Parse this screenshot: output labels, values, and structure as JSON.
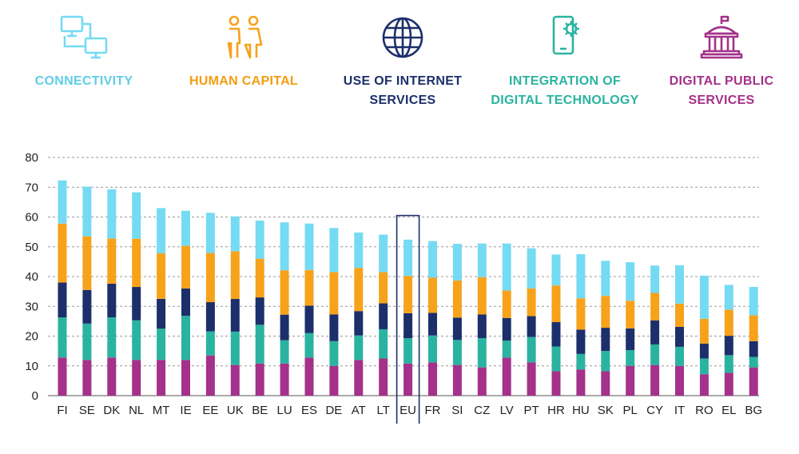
{
  "legend": {
    "items": [
      {
        "key": "connectivity",
        "label": "CONNECTIVITY",
        "color": "#75dbf3",
        "icon": "connected-computers-icon"
      },
      {
        "key": "human_capital",
        "label": "HUMAN CAPITAL",
        "color": "#f7a21b",
        "icon": "two-people-icon"
      },
      {
        "key": "internet_services",
        "label": "USE OF INTERNET\nSERVICES",
        "color": "#1c2f6b",
        "icon": "globe-icon"
      },
      {
        "key": "digital_technology",
        "label": "INTEGRATION OF\nDIGITAL TECHNOLOGY",
        "color": "#2ab3a0",
        "icon": "smartphone-gear-icon"
      },
      {
        "key": "public_services",
        "label": "DIGITAL PUBLIC\nSERVICES",
        "color": "#a4318a",
        "icon": "government-building-icon"
      }
    ]
  },
  "chart_data": {
    "type": "bar",
    "stacked": true,
    "ylim": [
      0,
      80
    ],
    "yticks": [
      0,
      10,
      20,
      30,
      40,
      50,
      60,
      70,
      80
    ],
    "grid": true,
    "highlight": "EU",
    "categories": [
      "FI",
      "SE",
      "DK",
      "NL",
      "MT",
      "IE",
      "EE",
      "UK",
      "BE",
      "LU",
      "ES",
      "DE",
      "AT",
      "LT",
      "EU",
      "FR",
      "SI",
      "CZ",
      "LV",
      "PT",
      "HR",
      "HU",
      "SK",
      "PL",
      "CY",
      "IT",
      "RO",
      "EL",
      "BG"
    ],
    "series": [
      {
        "key": "public_services",
        "color": "#a4318a",
        "values": [
          12.8,
          12,
          12.8,
          12,
          12,
          12,
          13.5,
          10.3,
          10.8,
          10.8,
          12.8,
          10,
          12,
          12.5,
          10.8,
          11.2,
          10.3,
          9.5,
          12.8,
          11.2,
          8.2,
          8.8,
          8.2,
          10,
          10.3,
          10,
          7.2,
          7.7,
          9.5
        ]
      },
      {
        "key": "digital_technology",
        "color": "#2ab3a0",
        "values": [
          13.5,
          12.2,
          13.5,
          13.3,
          10.5,
          14.8,
          8.1,
          11.2,
          13,
          7.8,
          8.2,
          8.3,
          8.2,
          9.8,
          8.5,
          9,
          8.4,
          9.8,
          5.7,
          8.5,
          8.3,
          5.2,
          6.8,
          5.3,
          6.9,
          6.4,
          5.3,
          5.9,
          3.5
        ]
      },
      {
        "key": "internet_services",
        "color": "#1c2f6b",
        "values": [
          11.7,
          11.3,
          11.3,
          11.2,
          10,
          9.2,
          9.8,
          11,
          9.2,
          8.6,
          9.2,
          9,
          8.2,
          8.7,
          8.4,
          7.6,
          7.5,
          8,
          7.6,
          7,
          8.2,
          8.2,
          7.8,
          7.3,
          8.1,
          6.7,
          5,
          6.5,
          5.3
        ]
      },
      {
        "key": "human_capital",
        "color": "#f7a21b",
        "values": [
          19.8,
          18,
          15.2,
          16.2,
          15.3,
          14.3,
          16.5,
          16,
          13,
          14.9,
          12,
          14.2,
          14.5,
          10.5,
          12.5,
          11.8,
          12.5,
          12.5,
          9.2,
          9.3,
          12.3,
          10.5,
          10.7,
          9.3,
          9.2,
          7.8,
          8.3,
          8.8,
          8.7
        ]
      },
      {
        "key": "connectivity",
        "color": "#75dbf3",
        "values": [
          14.5,
          16.7,
          16.5,
          15.6,
          15.2,
          11.8,
          13.5,
          11.7,
          12.8,
          16.1,
          15.6,
          14.8,
          11.9,
          12.6,
          12.2,
          12.3,
          12.3,
          11.3,
          15.8,
          13.5,
          10.4,
          14.8,
          11.8,
          12.9,
          9.2,
          12.9,
          14.5,
          8.3,
          9.5
        ]
      }
    ]
  }
}
